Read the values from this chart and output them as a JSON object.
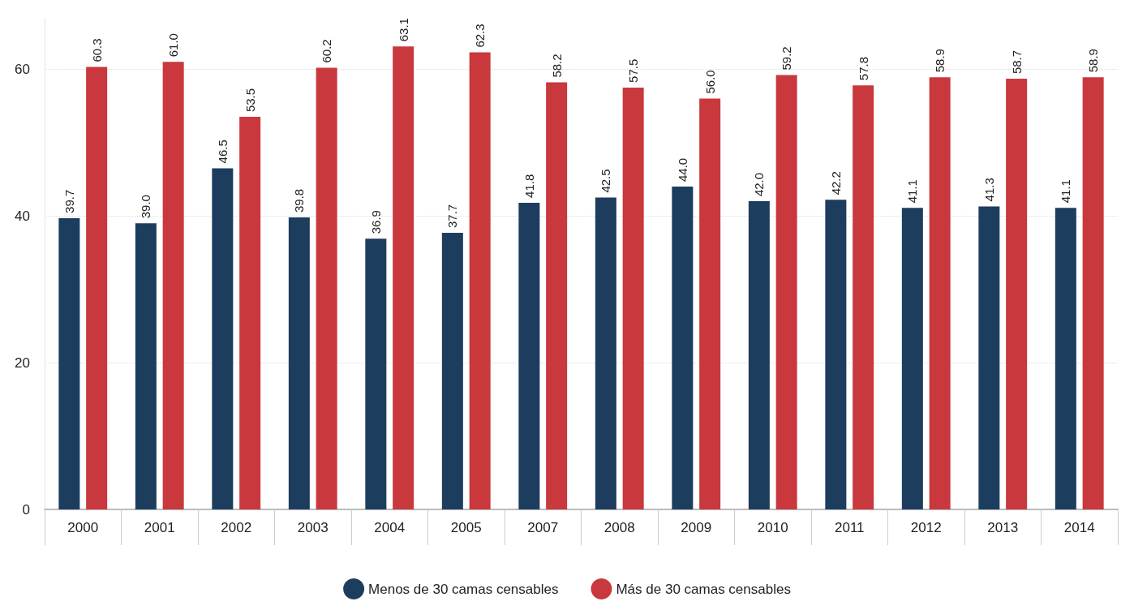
{
  "chart_data": {
    "type": "bar",
    "categories": [
      "2000",
      "2001",
      "2002",
      "2003",
      "2004",
      "2005",
      "2007",
      "2008",
      "2009",
      "2010",
      "2011",
      "2012",
      "2013",
      "2014"
    ],
    "series": [
      {
        "name": "Menos de 30 camas censables",
        "color": "#1d3d5e",
        "values": [
          39.7,
          39.0,
          46.5,
          39.8,
          36.9,
          37.7,
          41.8,
          42.5,
          44.0,
          42.0,
          42.2,
          41.1,
          41.3,
          41.1
        ],
        "value_labels": [
          "39.7",
          "39.0",
          "46.5",
          "39.8",
          "36.9",
          "37.7",
          "41.8",
          "42.5",
          "44.0",
          "42.0",
          "42.2",
          "41.1",
          "41.3",
          "41.1"
        ]
      },
      {
        "name": "Más de 30 camas censables",
        "color": "#c9383c",
        "values": [
          60.3,
          61.0,
          53.5,
          60.2,
          63.1,
          62.3,
          58.2,
          57.5,
          56.0,
          59.2,
          57.8,
          58.9,
          58.7,
          58.9
        ],
        "value_labels": [
          "60.3",
          "61.0",
          "53.5",
          "60.2",
          "63.1",
          "62.3",
          "58.2",
          "57.5",
          "56.0",
          "59.2",
          "57.8",
          "58.9",
          "58.7",
          "58.9"
        ]
      }
    ],
    "ylim": [
      0,
      67
    ],
    "yticks": [
      0,
      20,
      40,
      60
    ],
    "grid": "y",
    "legend": "bottom"
  }
}
